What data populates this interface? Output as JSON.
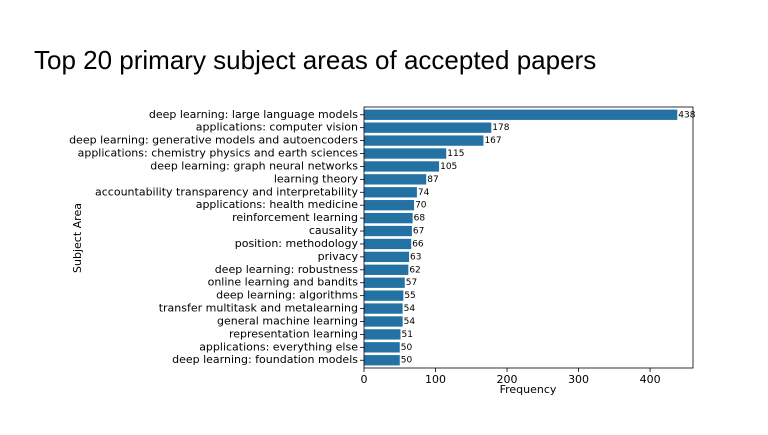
{
  "chart_data": {
    "type": "barh",
    "title": "Top 20 primary subject areas of accepted papers",
    "x_label": "Frequency",
    "y_label": "Subject Area",
    "categories": [
      "deep learning: large language models",
      "applications: computer vision",
      "deep learning: generative models and autoencoders",
      "applications: chemistry physics and earth sciences",
      "deep learning: graph neural networks",
      "learning theory",
      "accountability transparency and interpretability",
      "applications: health medicine",
      "reinforcement learning",
      "causality",
      "position: methodology",
      "privacy",
      "deep learning: robustness",
      "online learning and bandits",
      "deep learning: algorithms",
      "transfer multitask and metalearning",
      "general machine learning",
      "representation learning",
      "applications: everything else",
      "deep learning: foundation models"
    ],
    "values": [
      438,
      178,
      167,
      115,
      105,
      87,
      74,
      70,
      68,
      67,
      66,
      63,
      62,
      57,
      55,
      54,
      54,
      51,
      50,
      50
    ],
    "color": "#2471a3",
    "xlim": [
      0,
      460
    ],
    "xticks": [
      0,
      100,
      200,
      300,
      400
    ]
  }
}
